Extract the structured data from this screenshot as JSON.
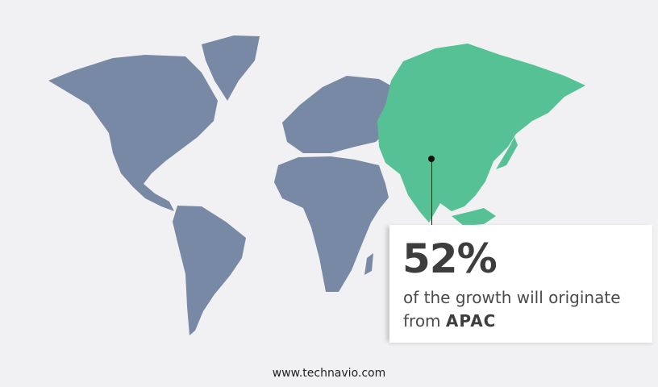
{
  "stat": {
    "value": "52%",
    "text": "of the growth will originate",
    "prefix": "from",
    "region": "APAC"
  },
  "footer": {
    "website": "www.technavio.com"
  },
  "colors": {
    "land": "#7889a5",
    "highlight": "#55c194",
    "background": "#f1f1f3"
  }
}
